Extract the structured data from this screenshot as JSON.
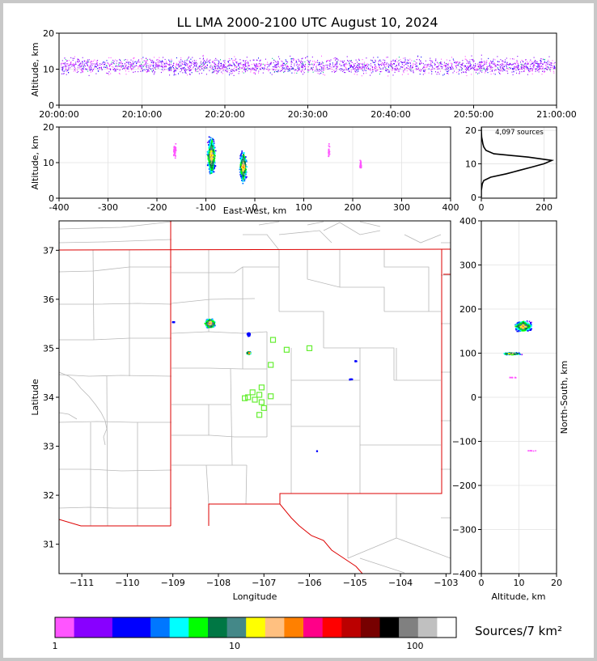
{
  "title": "LL LMA 2000-2100 UTC August 10, 2024",
  "time_panel": {
    "ylabel": "Altitude, km",
    "yticks": [
      "0",
      "10",
      "20"
    ],
    "xticks": [
      "20:00:00",
      "20:10:00",
      "20:20:00",
      "20:30:00",
      "20:40:00",
      "20:50:00",
      "21:00:00"
    ]
  },
  "ew_panel": {
    "ylabel": "Altitude, km",
    "xlabel": "East-West, km",
    "yticks": [
      "0",
      "10",
      "20"
    ],
    "xticks": [
      "-400",
      "-300",
      "-200",
      "-100",
      "0",
      "100",
      "200",
      "300",
      "400"
    ]
  },
  "hist_panel": {
    "annotation": "4,097 sources",
    "yticks": [
      "0",
      "10",
      "20"
    ],
    "xticks": [
      "0",
      "200"
    ]
  },
  "map_panel": {
    "xlabel": "Longitude",
    "ylabel": "Latitude",
    "xticks": [
      "−111",
      "−110",
      "−109",
      "−108",
      "−107",
      "−106",
      "−105",
      "−104",
      "−103"
    ],
    "yticks": [
      "31",
      "32",
      "33",
      "34",
      "35",
      "36",
      "37"
    ]
  },
  "ns_panel": {
    "xlabel": "Altitude, km",
    "ylabel": "North-South, km",
    "xticks": [
      "0",
      "10",
      "20"
    ],
    "yticks": [
      "400",
      "300",
      "200",
      "100",
      "0",
      "−100",
      "−200",
      "−300",
      "−400"
    ]
  },
  "colorbar": {
    "label": "Sources/7 km²",
    "ticks": [
      "1",
      "10",
      "100"
    ],
    "colors": [
      "#ff55ff",
      "#8800ff",
      "#8800ff",
      "#0000ff",
      "#0000ff",
      "#0077ff",
      "#00ffff",
      "#00ff00",
      "#007744",
      "#448888",
      "#ffff00",
      "#ffc080",
      "#ff8000",
      "#ff0088",
      "#ff0000",
      "#bb0000",
      "#770000",
      "#000000",
      "#808080",
      "#c0c0c0",
      "#ffffff"
    ]
  },
  "chart_data": [
    {
      "type": "scatter",
      "title": "LL LMA 2000-2100 UTC August 10, 2024",
      "xlabel": "",
      "ylabel": "Altitude, km",
      "xlim": [
        "20:00:00",
        "21:00:00"
      ],
      "ylim": [
        0,
        20
      ],
      "description_values": "time-height plot of VHF sources, altitudes mostly 6-16 km throughout the hour"
    },
    {
      "type": "scatter",
      "xlabel": "East-West, km",
      "ylabel": "Altitude, km",
      "xlim": [
        -400,
        400
      ],
      "ylim": [
        0,
        20
      ],
      "clusters": [
        {
          "x": -90,
          "alt_range": [
            6,
            18
          ]
        },
        {
          "x": -25,
          "alt_range": [
            4,
            14
          ]
        },
        {
          "x": -165,
          "alt_range": [
            11,
            16
          ]
        },
        {
          "x": 150,
          "alt_range": [
            11,
            16
          ]
        },
        {
          "x": 215,
          "alt_range": [
            8,
            11
          ]
        }
      ]
    },
    {
      "type": "line",
      "annotation": "4,097 sources",
      "xlim": [
        0,
        240
      ],
      "ylim": [
        0,
        21
      ],
      "y": [
        0,
        2,
        4,
        5,
        6,
        7,
        8,
        9,
        10,
        11,
        12,
        13,
        14,
        15,
        16,
        17,
        18,
        20,
        21
      ],
      "x": [
        0,
        0,
        3,
        8,
        30,
        80,
        120,
        160,
        200,
        225,
        150,
        40,
        15,
        8,
        5,
        3,
        1,
        0,
        0
      ]
    },
    {
      "type": "heatmap",
      "xlabel": "Longitude",
      "ylabel": "Latitude",
      "xlim": [
        -111.5,
        -102.9
      ],
      "ylim": [
        30.4,
        37.6
      ]
    },
    {
      "type": "scatter",
      "xlabel": "Altitude, km",
      "ylabel": "North-South, km",
      "xlim": [
        0,
        20
      ],
      "ylim": [
        -400,
        400
      ]
    }
  ]
}
